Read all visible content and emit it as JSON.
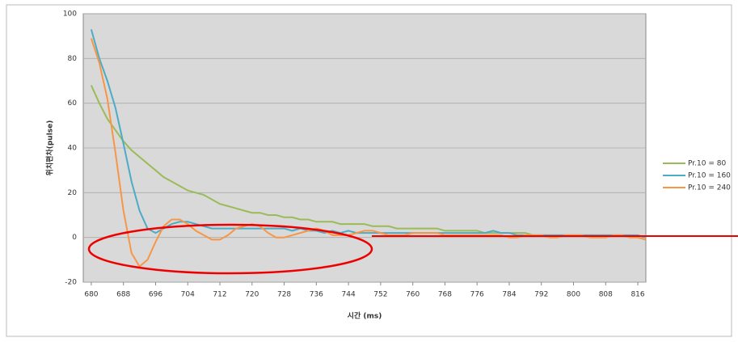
{
  "chart_data": {
    "type": "line",
    "y_label": "위치편차(pulse)",
    "x_label": "시간 (ms)",
    "x": [
      680,
      682,
      684,
      686,
      688,
      690,
      692,
      694,
      696,
      698,
      700,
      702,
      704,
      706,
      708,
      710,
      712,
      714,
      716,
      718,
      720,
      722,
      724,
      726,
      728,
      730,
      732,
      734,
      736,
      738,
      740,
      742,
      744,
      746,
      748,
      750,
      752,
      754,
      756,
      758,
      760,
      762,
      764,
      766,
      768,
      770,
      772,
      774,
      776,
      778,
      780,
      782,
      784,
      786,
      788,
      790,
      792,
      794,
      796,
      798,
      800,
      802,
      804,
      806,
      808,
      810,
      812,
      814,
      816,
      818
    ],
    "series": [
      {
        "name": "Pr.10 = 80",
        "color": "#9bbb59",
        "values": [
          68,
          60,
          53,
          48,
          43,
          39,
          36,
          33,
          30,
          27,
          25,
          23,
          21,
          20,
          19,
          17,
          15,
          14,
          13,
          12,
          11,
          11,
          10,
          10,
          9,
          9,
          8,
          8,
          7,
          7,
          7,
          6,
          6,
          6,
          6,
          5,
          5,
          5,
          4,
          4,
          4,
          4,
          4,
          4,
          3,
          3,
          3,
          3,
          3,
          2,
          2,
          2,
          2,
          2,
          2,
          1,
          1,
          1,
          1,
          1,
          1,
          1,
          1,
          1,
          1,
          1,
          1,
          1,
          0,
          -1
        ]
      },
      {
        "name": "Pr.10 = 160",
        "color": "#4bacc6",
        "values": [
          93,
          80,
          70,
          58,
          42,
          25,
          12,
          4,
          2,
          4,
          6,
          7,
          7,
          6,
          5,
          4,
          4,
          4,
          4,
          4,
          4,
          4,
          4,
          4,
          4,
          3,
          4,
          3,
          3,
          2,
          3,
          2,
          3,
          2,
          2,
          2,
          2,
          2,
          2,
          2,
          2,
          2,
          2,
          2,
          2,
          2,
          2,
          2,
          2,
          2,
          3,
          2,
          2,
          1,
          1,
          1,
          1,
          1,
          1,
          1,
          1,
          1,
          1,
          1,
          1,
          1,
          1,
          1,
          1,
          0
        ]
      },
      {
        "name": "Pr.10 = 240",
        "color": "#f79646",
        "values": [
          89,
          78,
          62,
          38,
          12,
          -7,
          -13,
          -10,
          -2,
          5,
          8,
          8,
          6,
          3,
          1,
          -1,
          -1,
          1,
          4,
          5,
          6,
          5,
          2,
          0,
          0,
          1,
          2,
          3,
          4,
          3,
          1,
          1,
          1,
          2,
          3,
          3,
          2,
          1,
          1,
          1,
          2,
          2,
          2,
          2,
          1,
          1,
          1,
          1,
          1,
          1,
          1,
          1,
          0,
          0,
          1,
          1,
          1,
          0,
          0,
          1,
          1,
          1,
          0,
          0,
          0,
          1,
          1,
          0,
          0,
          -1
        ]
      }
    ],
    "xlim": [
      678,
      818
    ],
    "xticks": [
      680,
      688,
      696,
      704,
      712,
      720,
      728,
      736,
      744,
      752,
      760,
      768,
      776,
      784,
      792,
      800,
      808,
      816
    ],
    "ylim": [
      -20,
      100
    ],
    "yticks": [
      -20,
      0,
      20,
      40,
      60,
      80,
      100
    ],
    "grid": true
  }
}
